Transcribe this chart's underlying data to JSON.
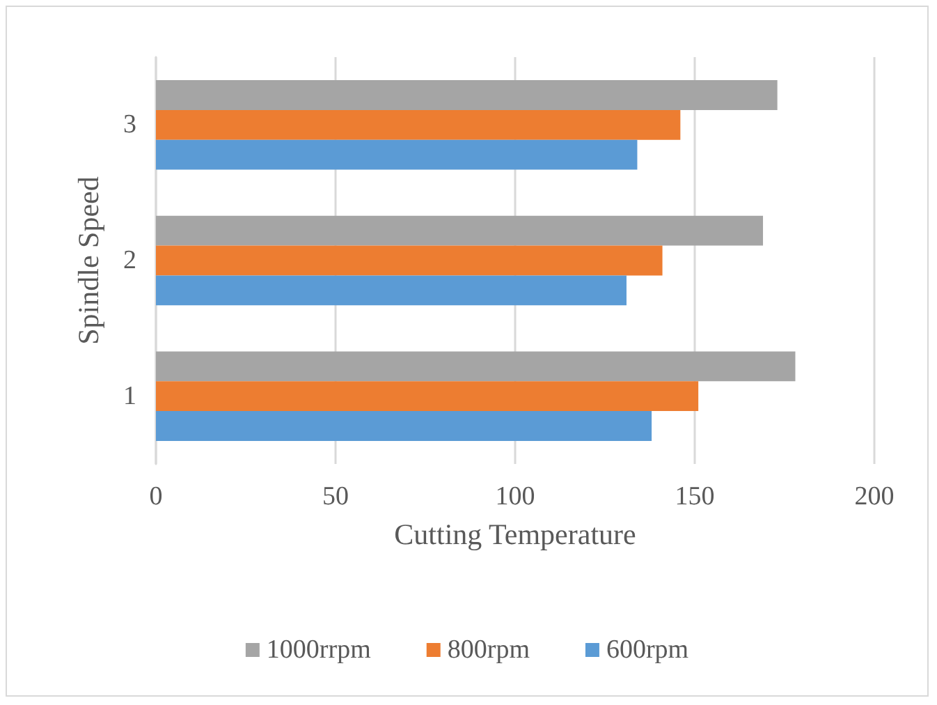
{
  "chart_data": {
    "type": "bar",
    "orientation": "horizontal",
    "xlabel": "Cutting Temperature",
    "ylabel": "Spindle Speed",
    "categories": [
      "3",
      "2",
      "1"
    ],
    "series": [
      {
        "name": "1000rrpm",
        "color": "#a5a5a5",
        "values": [
          173,
          169,
          178
        ]
      },
      {
        "name": "800rpm",
        "color": "#ed7d31",
        "values": [
          146,
          141,
          151
        ]
      },
      {
        "name": "600rpm",
        "color": "#5b9bd5",
        "values": [
          134,
          131,
          138
        ]
      }
    ],
    "xlim": [
      0,
      200
    ],
    "xticks": [
      0,
      50,
      100,
      150,
      200
    ],
    "grid": "x",
    "legend": "bottom"
  }
}
